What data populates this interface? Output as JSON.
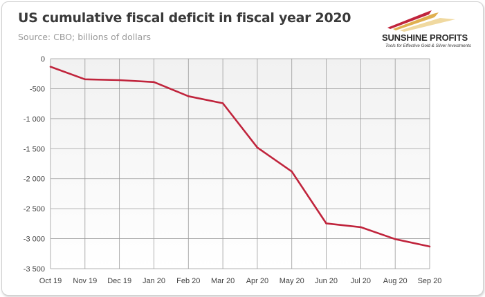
{
  "header": {
    "title": "US cumulative fiscal deficit in fiscal year 2020",
    "subtitle": "Source: CBO; billions of dollars"
  },
  "logo": {
    "name": "SUNSHINE PROFITS",
    "tagline": "Tools for Effective Gold & Silver Investments",
    "colors": [
      "#c0243c",
      "#e0b050",
      "#f0d9a0"
    ]
  },
  "colors": {
    "line": "#c0243c",
    "grid": "#9a9a9a",
    "plot_bg_top": "#f4f4f4",
    "plot_bg_bottom": "#ffffff"
  },
  "chart_data": {
    "type": "line",
    "title": "US cumulative fiscal deficit in fiscal year 2020",
    "subtitle": "Source: CBO; billions of dollars",
    "xlabel": "",
    "ylabel": "",
    "categories": [
      "Oct 19",
      "Nov 19",
      "Dec 19",
      "Jan 20",
      "Feb 20",
      "Mar 20",
      "Apr 20",
      "May 20",
      "Jun 20",
      "Jul 20",
      "Aug 20",
      "Sep 20"
    ],
    "series": [
      {
        "values": [
          -134,
          -343,
          -357,
          -389,
          -625,
          -743,
          -1481,
          -1880,
          -2745,
          -2808,
          -3007,
          -3131
        ]
      }
    ],
    "ylim": [
      -3500,
      0
    ],
    "yticks": [
      0,
      -500,
      -1000,
      -1500,
      -2000,
      -2500,
      -3000,
      -3500
    ],
    "ytick_labels": [
      "0",
      "-500",
      "-1 000",
      "-1 500",
      "-2 000",
      "-2 500",
      "-3 000",
      "-3 500"
    ],
    "grid": true,
    "legend": "none"
  }
}
